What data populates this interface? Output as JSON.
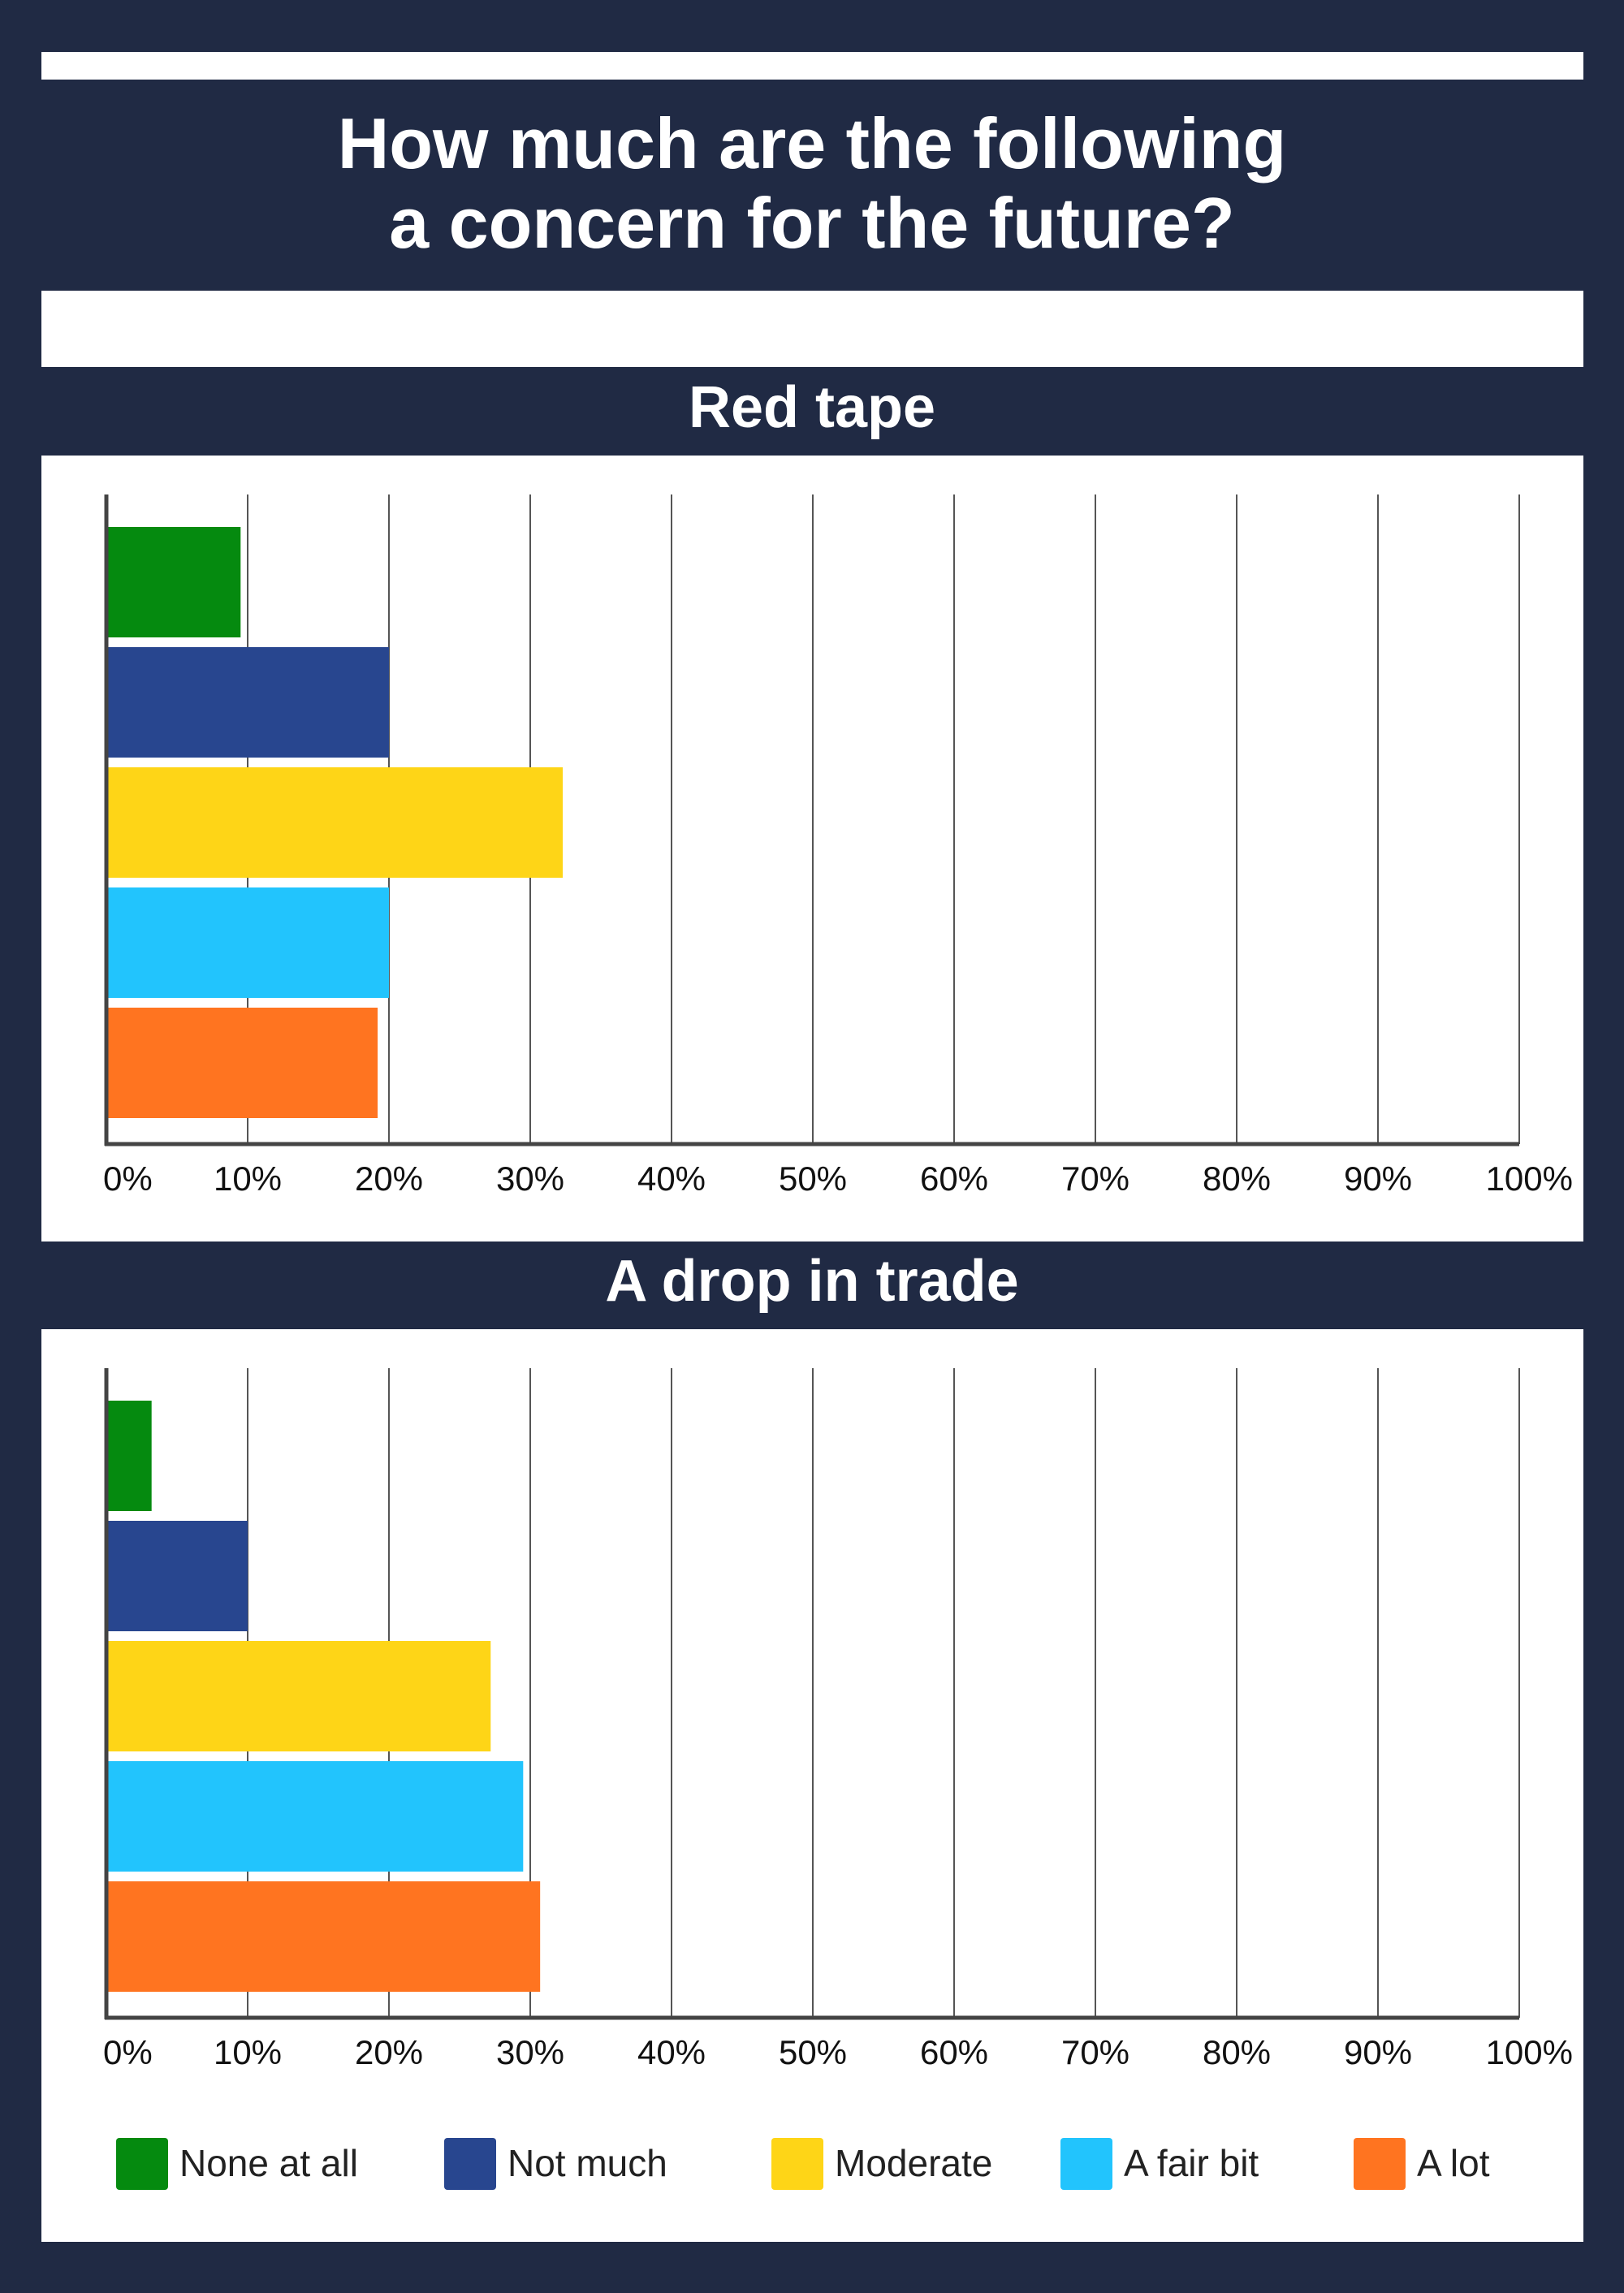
{
  "title": "How much are the following\na concern for the future?",
  "colors": {
    "background": "#202a44",
    "panel": "#ffffff",
    "gridline": "#555555",
    "axis": "#444444"
  },
  "legend": [
    {
      "label": "None at all",
      "color": "#058a0f"
    },
    {
      "label": "Not much",
      "color": "#28468f"
    },
    {
      "label": "Moderate",
      "color": "#fed517"
    },
    {
      "label": "A fair bit",
      "color": "#22c4fd"
    },
    {
      "label": "A lot",
      "color": "#ff7420"
    }
  ],
  "chart_data": [
    {
      "type": "bar",
      "orientation": "horizontal",
      "title": "Red tape",
      "categories": [
        "None at all",
        "Not much",
        "Moderate",
        "A fair bit",
        "A lot"
      ],
      "values": [
        9.5,
        20,
        32.3,
        20,
        19.2
      ],
      "xlim": [
        0,
        100
      ],
      "xticks": [
        "0%",
        "10%",
        "20%",
        "30%",
        "40%",
        "50%",
        "60%",
        "70%",
        "80%",
        "90%",
        "100%"
      ],
      "grid": true,
      "legend_position": "bottom"
    },
    {
      "type": "bar",
      "orientation": "horizontal",
      "title": "A drop in trade",
      "categories": [
        "None at all",
        "Not much",
        "Moderate",
        "A fair bit",
        "A lot"
      ],
      "values": [
        3.2,
        10,
        27.2,
        29.5,
        30.7
      ],
      "xlim": [
        0,
        100
      ],
      "xticks": [
        "0%",
        "10%",
        "20%",
        "30%",
        "40%",
        "50%",
        "60%",
        "70%",
        "80%",
        "90%",
        "100%"
      ],
      "grid": true,
      "legend_position": "bottom"
    }
  ]
}
